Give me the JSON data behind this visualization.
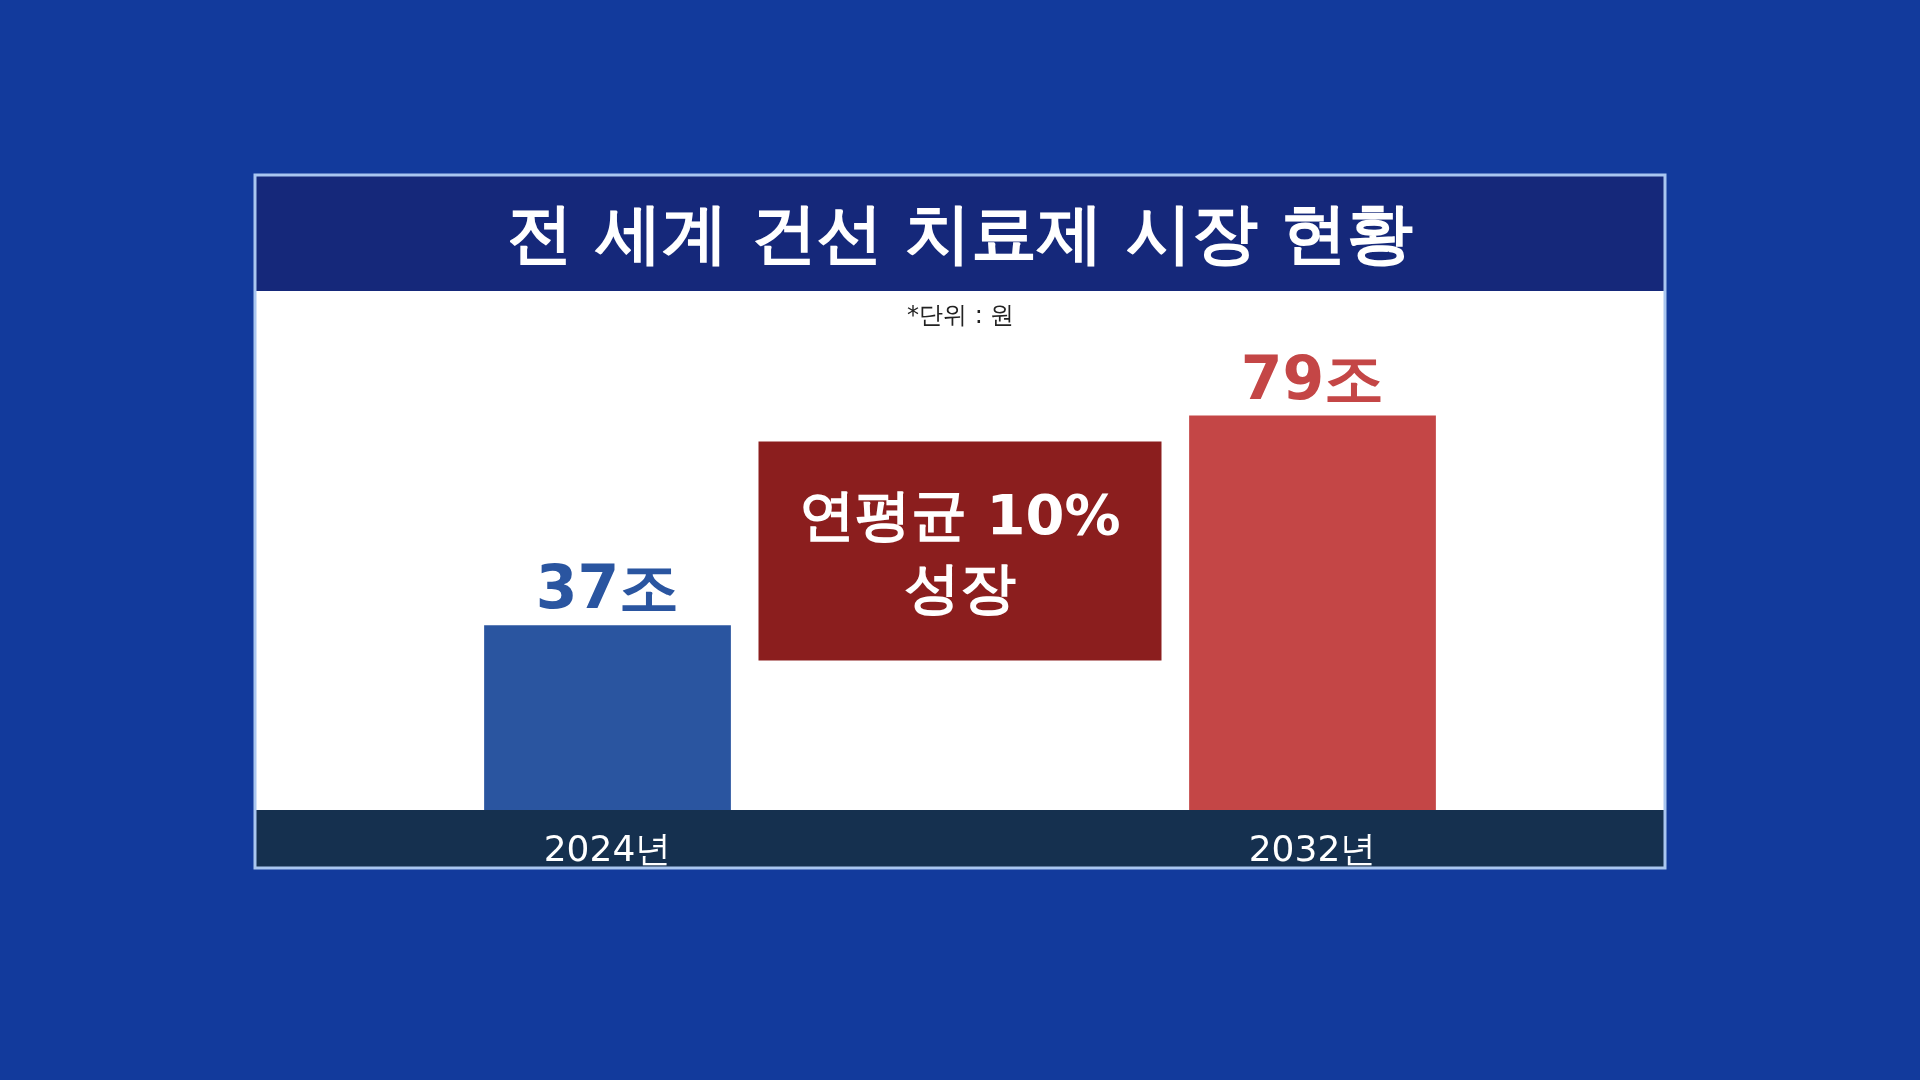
{
  "chart_data": {
    "type": "bar",
    "title": "전 세계 건선 치료제 시장 현황",
    "categories": [
      "2024년",
      "2032년"
    ],
    "values": [
      37,
      79
    ],
    "colors": [
      "#2a55a0",
      "#c44646"
    ],
    "value_labels": [
      "37조",
      "79조"
    ],
    "annotations": [
      "*단위 : 원",
      "연평균 10%\n성장"
    ],
    "legend": false
  }
}
